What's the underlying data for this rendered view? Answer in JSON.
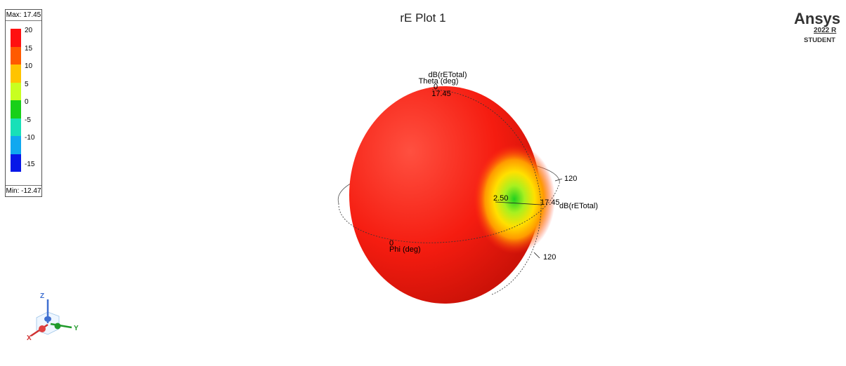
{
  "chart_data": {
    "type": "3d-radiation-pattern",
    "title": "rE Plot 1",
    "quantity": "dB(rETotal)",
    "max_label": "Max: 17.45",
    "min_label": "Min: -12.47",
    "max_value": 17.45,
    "min_value": -12.47,
    "legend": {
      "ticks": [
        "20",
        "15",
        "10",
        "5",
        "0",
        "-5",
        "-10",
        "-15"
      ],
      "colors": [
        "#ff1010",
        "#ff5a00",
        "#ffc400",
        "#c8ff20",
        "#18d018",
        "#18e0b8",
        "#10a8f0",
        "#0818e8"
      ]
    },
    "theta_axis": {
      "label": "Theta (deg)",
      "quantity_label": "dB(rETotal)",
      "zero_label": "0",
      "value_label": "17.45"
    },
    "phi_axis": {
      "label": "Phi (deg)",
      "zero_label": "0"
    },
    "ring_labels": [
      "120",
      "120"
    ],
    "radial_labels": {
      "inner": "2.50",
      "outer": "17.45",
      "quantity": "dB(rETotal)"
    }
  },
  "brand": {
    "name": "Ansys",
    "version": "2022 R",
    "edition": "STUDENT"
  },
  "axes_triad": {
    "x": "X",
    "y": "Y",
    "z": "Z"
  }
}
